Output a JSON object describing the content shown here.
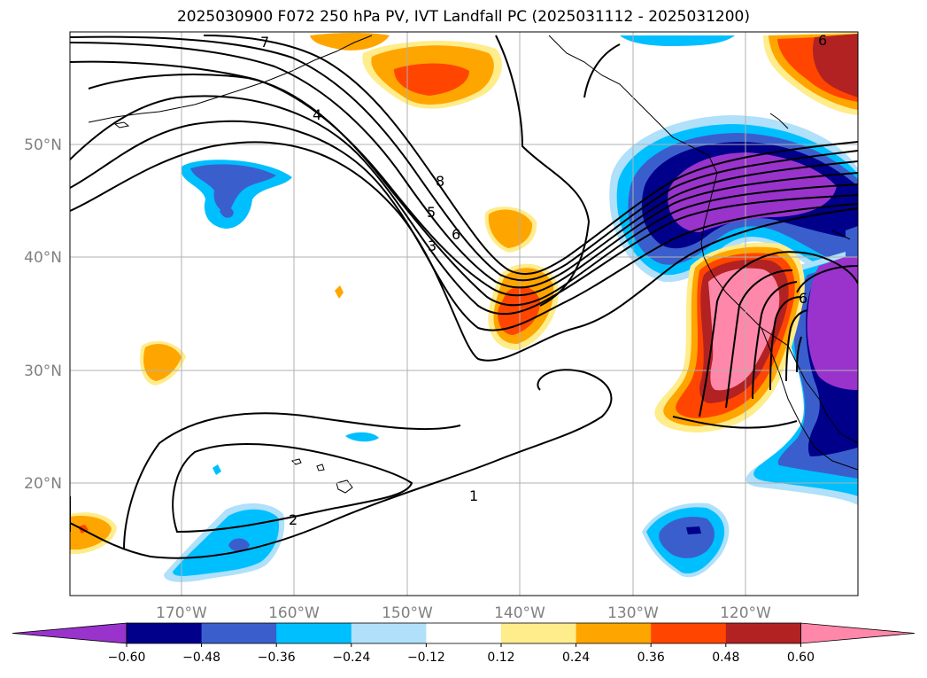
{
  "title": "2025030900 F072 250 hPa PV, IVT Landfall PC (2025031112 - 2025031200)",
  "map": {
    "lat_labels": [
      "50°N",
      "40°N",
      "30°N",
      "20°N"
    ],
    "lon_labels": [
      "170°W",
      "160°W",
      "150°W",
      "140°W",
      "130°W",
      "120°W"
    ],
    "gridlines": true,
    "contour_labels": [
      "7",
      "4",
      "8",
      "5",
      "6",
      "3",
      "1",
      "2",
      "6",
      "6"
    ]
  },
  "colorbar": {
    "ticks": [
      "−0.60",
      "−0.48",
      "−0.36",
      "−0.24",
      "−0.12",
      "0.12",
      "0.24",
      "0.36",
      "0.48",
      "0.60"
    ],
    "colors": [
      "#9933cc",
      "#00008b",
      "#3a5fcd",
      "#00bfff",
      "#b0e0fa",
      "#ffffff",
      "#ffec8b",
      "#ffa500",
      "#ff4500",
      "#b22222",
      "#ff88aa"
    ]
  },
  "colors": {
    "purple": "#9933cc",
    "navy": "#00008b",
    "royal": "#3a5fcd",
    "sky": "#00bfff",
    "pale_blue": "#b0e0fa",
    "pale_yellow": "#ffec8b",
    "orange": "#ffa500",
    "red_orange": "#ff4500",
    "firebrick": "#b22222",
    "pink": "#ff88aa"
  }
}
